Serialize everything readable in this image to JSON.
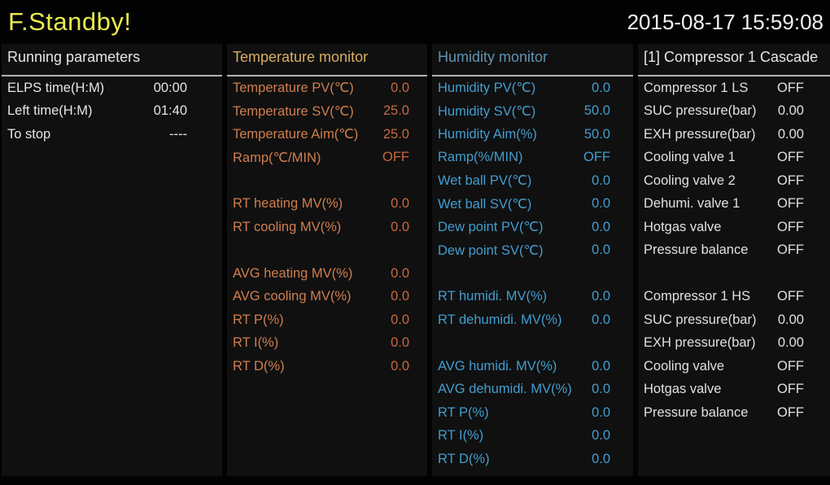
{
  "titlebar": {
    "title": "F.Standby!",
    "datetime": "2015-08-17 15:59:08"
  },
  "colors": {
    "background": "#020202",
    "panel_background": "#101010",
    "title_yellow": "#e9eb4e",
    "white_text": "#e6e6e6",
    "temperature_header": "#d9ad62",
    "temperature_text": "#d07e4e",
    "temperature_value": "#c8693e",
    "humidity_header": "#6193b2",
    "humidity_text": "#429dcf",
    "header_underline": "#b2b2b2"
  },
  "panels": [
    {
      "header": "Running parameters",
      "rows": [
        {
          "label": "ELPS time(H:M)",
          "value": "00:00"
        },
        {
          "label": "Left time(H:M)",
          "value": "01:40"
        },
        {
          "label": "To stop",
          "value": "----"
        }
      ]
    },
    {
      "header": "Temperature monitor",
      "rows": [
        {
          "label": "Temperature PV(℃)",
          "value": "0.0"
        },
        {
          "label": "Temperature SV(℃)",
          "value": "25.0"
        },
        {
          "label": "Temperature Aim(℃)",
          "value": "25.0"
        },
        {
          "label": "Ramp(℃/MIN)",
          "value": "OFF"
        },
        {
          "label": "",
          "value": ""
        },
        {
          "label": "RT heating MV(%)",
          "value": "0.0"
        },
        {
          "label": "RT cooling MV(%)",
          "value": "0.0"
        },
        {
          "label": "",
          "value": ""
        },
        {
          "label": "AVG heating MV(%)",
          "value": "0.0"
        },
        {
          "label": "AVG cooling MV(%)",
          "value": "0.0"
        },
        {
          "label": "RT P(%)",
          "value": "0.0"
        },
        {
          "label": "RT I(%)",
          "value": "0.0"
        },
        {
          "label": "RT D(%)",
          "value": "0.0"
        }
      ]
    },
    {
      "header": "Humidity monitor",
      "rows": [
        {
          "label": "Humidity PV(℃)",
          "value": "0.0"
        },
        {
          "label": "Humidity SV(℃)",
          "value": "50.0"
        },
        {
          "label": "Humidity Aim(%)",
          "value": "50.0"
        },
        {
          "label": "Ramp(%/MIN)",
          "value": "OFF"
        },
        {
          "label": "Wet ball PV(℃)",
          "value": "0.0"
        },
        {
          "label": "Wet ball SV(℃)",
          "value": "0.0"
        },
        {
          "label": "Dew point PV(℃)",
          "value": "0.0"
        },
        {
          "label": "Dew point SV(℃)",
          "value": "0.0"
        },
        {
          "label": "",
          "value": ""
        },
        {
          "label": "RT humidi. MV(%)",
          "value": "0.0"
        },
        {
          "label": "RT dehumidi. MV(%)",
          "value": "0.0"
        },
        {
          "label": "",
          "value": ""
        },
        {
          "label": "AVG humidi. MV(%)",
          "value": "0.0"
        },
        {
          "label": "AVG dehumidi. MV(%)",
          "value": "0.0"
        },
        {
          "label": "RT P(%)",
          "value": "0.0"
        },
        {
          "label": "RT I(%)",
          "value": "0.0"
        },
        {
          "label": "RT D(%)",
          "value": "0.0"
        }
      ]
    },
    {
      "header": "[1] Compressor 1 Cascade",
      "rows": [
        {
          "label": "Compressor 1 LS",
          "value": "OFF"
        },
        {
          "label": "SUC pressure(bar)",
          "value": "0.00"
        },
        {
          "label": "EXH pressure(bar)",
          "value": "0.00"
        },
        {
          "label": "Cooling valve 1",
          "value": "OFF"
        },
        {
          "label": "Cooling valve 2",
          "value": "OFF"
        },
        {
          "label": "Dehumi. valve 1",
          "value": "OFF"
        },
        {
          "label": "Hotgas valve",
          "value": "OFF"
        },
        {
          "label": "Pressure balance",
          "value": "OFF"
        },
        {
          "label": "",
          "value": ""
        },
        {
          "label": "Compressor 1 HS",
          "value": "OFF"
        },
        {
          "label": "SUC pressure(bar)",
          "value": "0.00"
        },
        {
          "label": "EXH pressure(bar)",
          "value": "0.00"
        },
        {
          "label": "Cooling valve",
          "value": "OFF"
        },
        {
          "label": "Hotgas valve",
          "value": "OFF"
        },
        {
          "label": "Pressure balance",
          "value": "OFF"
        }
      ]
    }
  ]
}
